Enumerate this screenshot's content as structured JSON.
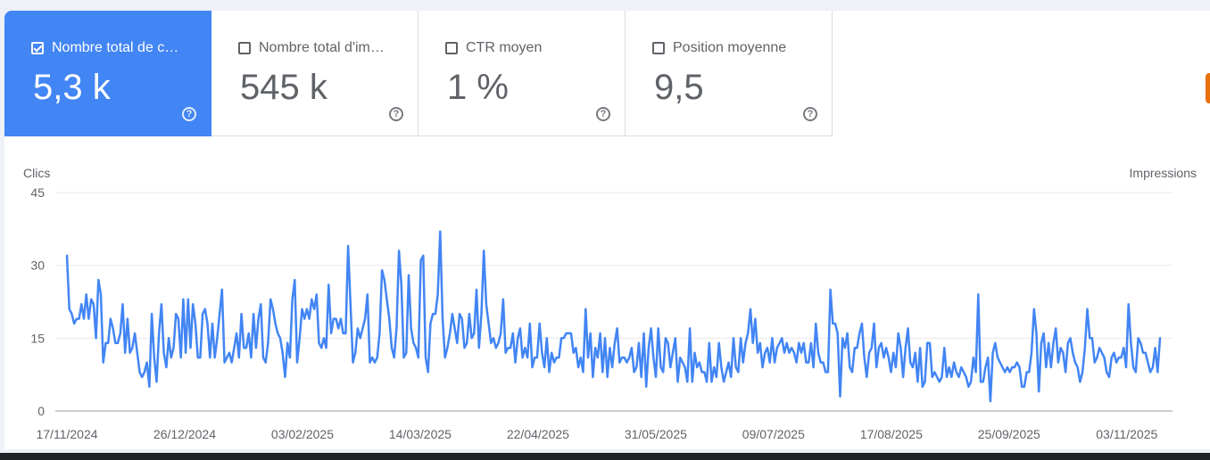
{
  "cards": [
    {
      "label": "Nombre total de c…",
      "value": "5,3 k",
      "checked": true,
      "help_icon": "help-circle-icon"
    },
    {
      "label": "Nombre total d'im…",
      "value": "545 k",
      "checked": false,
      "help_icon": "help-circle-icon"
    },
    {
      "label": "CTR moyen",
      "value": "1 %",
      "checked": false,
      "help_icon": "help-circle-icon"
    },
    {
      "label": "Position moyenne",
      "value": "9,5",
      "checked": false,
      "help_icon": "help-circle-icon"
    }
  ],
  "help_glyph": "?",
  "colors": {
    "accent": "#4285f4",
    "line": "#4285f4",
    "grid": "#e8eaed",
    "text": "#5f6368"
  },
  "chart_data": {
    "type": "line",
    "left_axis_label": "Clics",
    "right_axis_label": "Impressions",
    "yticks": [
      "45",
      "30",
      "15",
      "0"
    ],
    "ylim": [
      0,
      45
    ],
    "grid": true,
    "xticks": [
      "17/11/2024",
      "26/12/2024",
      "03/02/2025",
      "14/03/2025",
      "22/04/2025",
      "31/05/2025",
      "09/07/2025",
      "17/08/2025",
      "25/09/2025",
      "03/11/2025"
    ],
    "x_start": "17/11/2024",
    "x_end": "14/11/2025",
    "series": [
      {
        "values": [
          32,
          21,
          20,
          18,
          19,
          19,
          22,
          19,
          24,
          19,
          23,
          22,
          15,
          27,
          24,
          10,
          14,
          14,
          19,
          17,
          14,
          14,
          16,
          22,
          12,
          19,
          12,
          13,
          16,
          12,
          8,
          7,
          8,
          10,
          5,
          20,
          11,
          6,
          16,
          22,
          12,
          9,
          15,
          11,
          13,
          20,
          19,
          11,
          23,
          12,
          23,
          13,
          22,
          18,
          11,
          11,
          20,
          21,
          18,
          11,
          18,
          11,
          15,
          20,
          25,
          10,
          11,
          12,
          10,
          13,
          16,
          11,
          20,
          13,
          13,
          16,
          11,
          20,
          13,
          19,
          22,
          11,
          10,
          14,
          23,
          21,
          18,
          16,
          15,
          12,
          7,
          14,
          11,
          23,
          27,
          10,
          15,
          21,
          19,
          21,
          19,
          23,
          21,
          24,
          14,
          13,
          15,
          13,
          26,
          16,
          19,
          19,
          17,
          19,
          16,
          16,
          34,
          22,
          10,
          12,
          17,
          15,
          17,
          19,
          24,
          10,
          11,
          10,
          11,
          16,
          29,
          27,
          23,
          19,
          13,
          11,
          17,
          33,
          26,
          11,
          12,
          28,
          17,
          14,
          13,
          11,
          31,
          32,
          11,
          8,
          18,
          20,
          20,
          24,
          37,
          19,
          11,
          13,
          16,
          20,
          17,
          14,
          20,
          19,
          13,
          14,
          20,
          15,
          16,
          25,
          13,
          20,
          33,
          22,
          18,
          14,
          15,
          13,
          14,
          16,
          23,
          12,
          13,
          13,
          16,
          10,
          15,
          17,
          11,
          13,
          11,
          18,
          9,
          11,
          11,
          18,
          12,
          9,
          15,
          8,
          12,
          10,
          11,
          11,
          15,
          15,
          16,
          16,
          16,
          12,
          13,
          9,
          11,
          8,
          21,
          11,
          16,
          7,
          13,
          11,
          16,
          8,
          15,
          7,
          13,
          9,
          14,
          17,
          10,
          11,
          11,
          10,
          11,
          13,
          8,
          9,
          14,
          7,
          16,
          5,
          13,
          17,
          11,
          7,
          17,
          9,
          8,
          15,
          14,
          9,
          12,
          15,
          6,
          11,
          10,
          9,
          6,
          17,
          6,
          12,
          9,
          10,
          8,
          8,
          6,
          14,
          6,
          9,
          7,
          14,
          9,
          6,
          8,
          10,
          7,
          15,
          9,
          8,
          15,
          10,
          14,
          16,
          21,
          14,
          19,
          12,
          14,
          9,
          12,
          13,
          10,
          15,
          10,
          13,
          14,
          15,
          12,
          14,
          12,
          13,
          12,
          10,
          14,
          12,
          14,
          10,
          10,
          14,
          9,
          18,
          12,
          10,
          10,
          8,
          8,
          25,
          18,
          18,
          16,
          3,
          15,
          13,
          16,
          9,
          8,
          13,
          13,
          16,
          18,
          11,
          7,
          12,
          13,
          18,
          9,
          13,
          14,
          11,
          13,
          11,
          8,
          12,
          9,
          16,
          13,
          7,
          13,
          17,
          10,
          9,
          12,
          6,
          13,
          5,
          6,
          14,
          14,
          7,
          8,
          7,
          6,
          7,
          13,
          7,
          9,
          7,
          10,
          8,
          7,
          9,
          8,
          7,
          5,
          6,
          11,
          8,
          24,
          6,
          6,
          9,
          11,
          2,
          12,
          14,
          11,
          10,
          9,
          8,
          9,
          8,
          9,
          9,
          10,
          9,
          5,
          5,
          8,
          8,
          12,
          21,
          16,
          4,
          14,
          16,
          9,
          14,
          9,
          14,
          17,
          10,
          13,
          12,
          8,
          14,
          15,
          12,
          10,
          9,
          6,
          8,
          13,
          21,
          15,
          15,
          10,
          11,
          13,
          12,
          11,
          8,
          7,
          11,
          12,
          10,
          11,
          11,
          13,
          9,
          22,
          14,
          9,
          8,
          15,
          14,
          12,
          12,
          10,
          8,
          9,
          13,
          8,
          15
        ]
      }
    ]
  }
}
